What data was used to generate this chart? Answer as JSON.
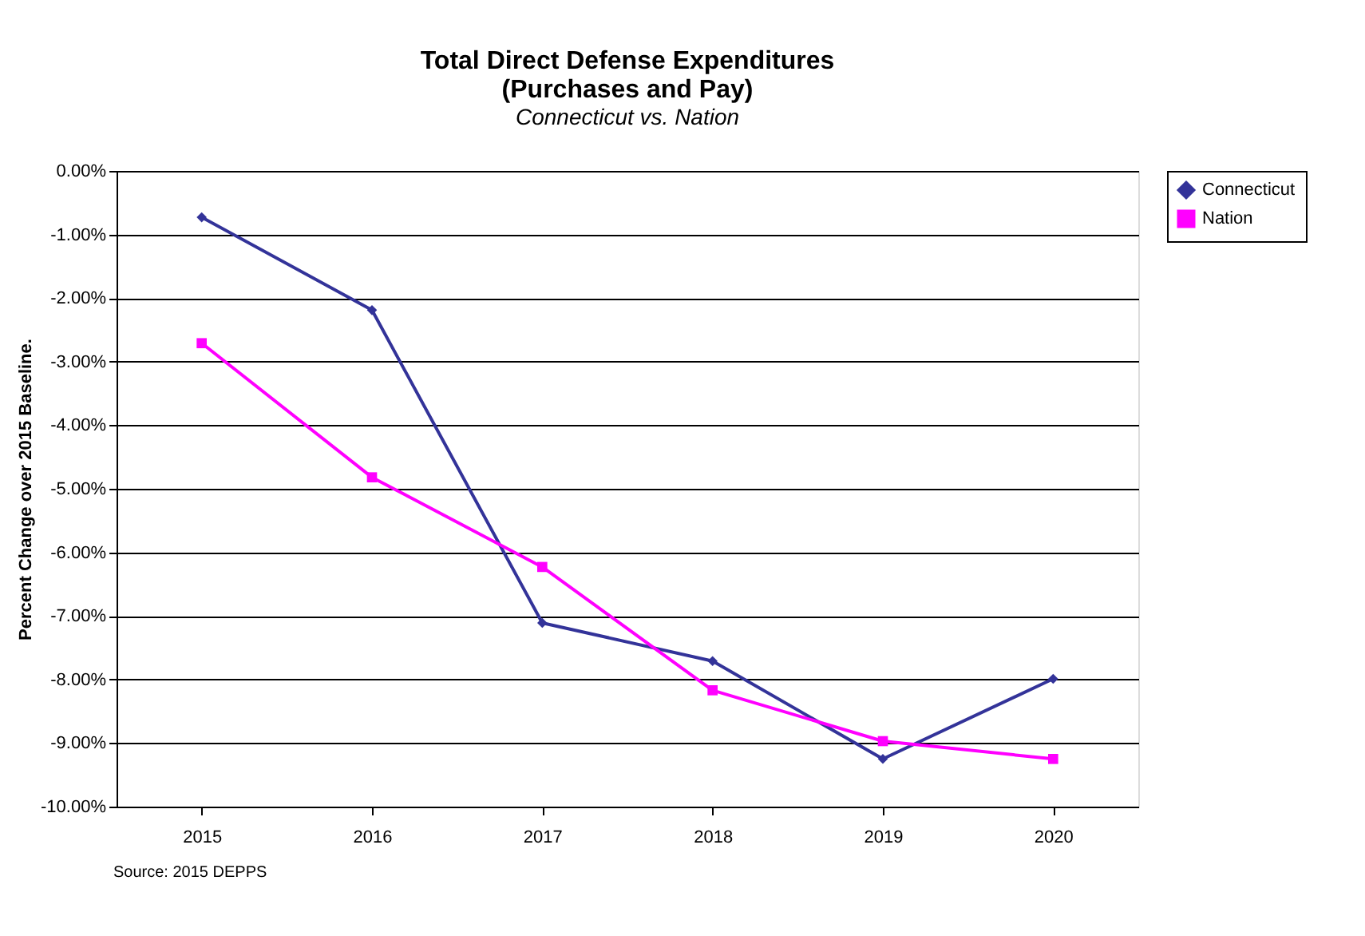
{
  "chart_data": {
    "type": "line",
    "title": "Total Direct Defense Expenditures\n(Purchases and Pay)",
    "subtitle": "Connecticut vs. Nation",
    "ylabel": "Percent Change over 2015 Baseline.",
    "categories": [
      "2015",
      "2016",
      "2017",
      "2018",
      "2019",
      "2020"
    ],
    "series": [
      {
        "name": "Connecticut",
        "color": "#333399",
        "marker": "diamond",
        "values": [
          -0.73,
          -2.19,
          -7.11,
          -7.71,
          -9.25,
          -7.99
        ]
      },
      {
        "name": "Nation",
        "color": "#ff00ff",
        "marker": "square",
        "values": [
          -2.71,
          -4.82,
          -6.23,
          -8.17,
          -8.97,
          -9.25
        ]
      }
    ],
    "ylim": [
      -10,
      0
    ],
    "yticks": [
      {
        "value": -10,
        "label": "-10.00%"
      },
      {
        "value": -9,
        "label": "-9.00%"
      },
      {
        "value": -8,
        "label": "-8.00%"
      },
      {
        "value": -7,
        "label": "-7.00%"
      },
      {
        "value": -6,
        "label": "-6.00%"
      },
      {
        "value": -5,
        "label": "-5.00%"
      },
      {
        "value": -4,
        "label": "-4.00%"
      },
      {
        "value": -3,
        "label": "-3.00%"
      },
      {
        "value": -2,
        "label": "-2.00%"
      },
      {
        "value": -1,
        "label": "-1.00%"
      },
      {
        "value": 0,
        "label": "0.00%"
      }
    ],
    "grid": "y",
    "legend": "right",
    "line_style": "solid",
    "annotations": [
      "Source: 2015 DEPPS"
    ]
  }
}
